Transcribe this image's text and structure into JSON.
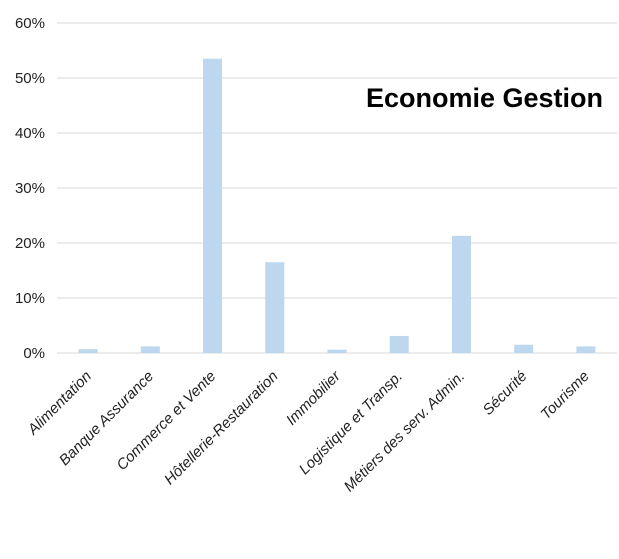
{
  "chart_data": {
    "type": "bar",
    "title": "Economie Gestion",
    "xlabel": "",
    "ylabel": "",
    "ylim": [
      0,
      0.6
    ],
    "y_ticks": [
      0,
      0.1,
      0.2,
      0.3,
      0.4,
      0.5,
      0.6
    ],
    "y_tick_labels": [
      "0%",
      "10%",
      "20%",
      "30%",
      "40%",
      "50%",
      "60%"
    ],
    "grid": true,
    "bar_color": "#bdd7ee",
    "grid_color": "#d9d9d9",
    "categories": [
      "Alimentation",
      "Banque Assurance",
      "Commerce et Vente",
      "Hôtellerie-Restauration",
      "Immobilier",
      "Logistique et Transp.",
      "Métiers des serv. Admin.",
      "Sécurité",
      "Tourisme"
    ],
    "values": [
      0.007,
      0.012,
      0.535,
      0.165,
      0.006,
      0.031,
      0.213,
      0.015,
      0.012
    ]
  }
}
